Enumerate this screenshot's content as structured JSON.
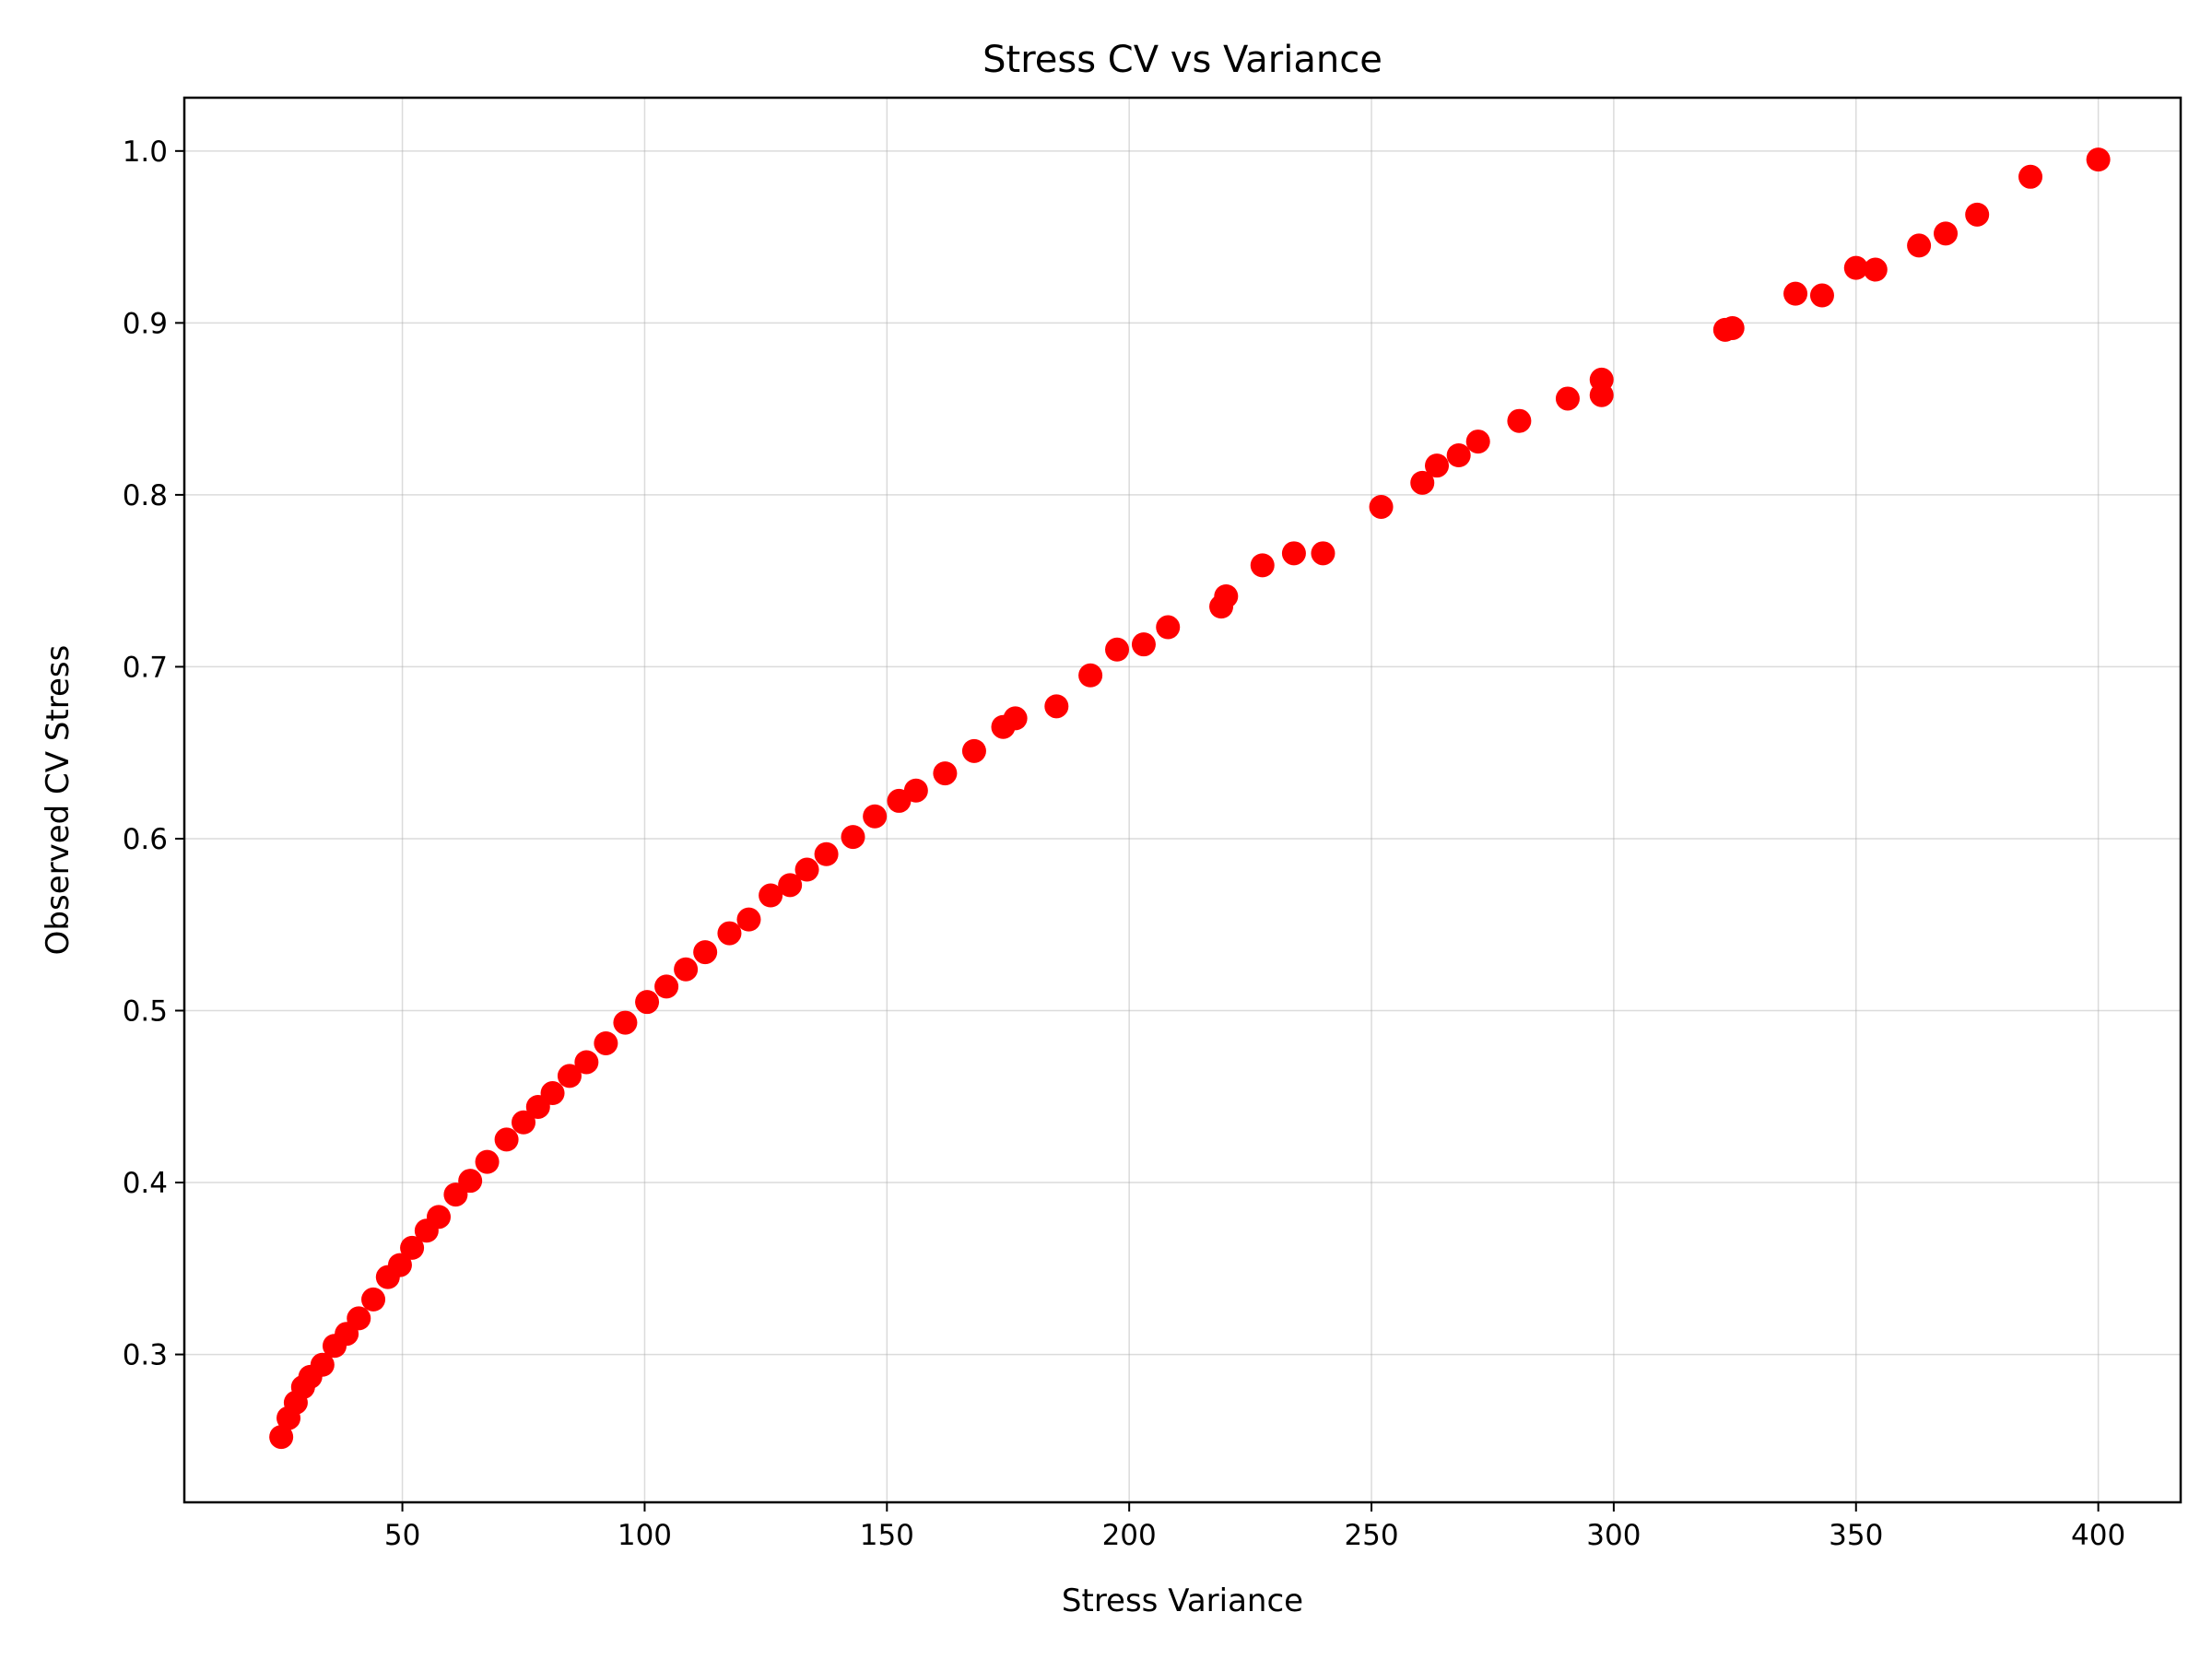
{
  "chart_data": {
    "type": "scatter",
    "title": "Stress CV vs Variance",
    "xlabel": "Stress Variance",
    "ylabel": "Observed CV Stress",
    "xlim": [
      5,
      417
    ],
    "ylim": [
      0.214,
      1.031
    ],
    "xticks": [
      50,
      100,
      150,
      200,
      250,
      300,
      350,
      400
    ],
    "yticks": [
      0.3,
      0.4,
      0.5,
      0.6,
      0.7,
      0.8,
      0.9,
      1.0
    ],
    "xtick_labels": [
      "50",
      "100",
      "150",
      "200",
      "250",
      "300",
      "350",
      "400"
    ],
    "ytick_labels": [
      "0.3",
      "0.4",
      "0.5",
      "0.6",
      "0.7",
      "0.8",
      "0.9",
      "1.0"
    ],
    "grid": true,
    "marker_color": "#ff0000",
    "series": [
      {
        "x": [
          25,
          26.5,
          28,
          29.5,
          31,
          33.5,
          36,
          38.5,
          41,
          44,
          47,
          49.5,
          52,
          55,
          57.5,
          61,
          64,
          67.5,
          71.5,
          75,
          78,
          81,
          84.5,
          88,
          92,
          96,
          100.5,
          104.5,
          108.5,
          112.5,
          117.5,
          121.5,
          126,
          130,
          133.5,
          137.5,
          143,
          147.5,
          152.5,
          156,
          162,
          168,
          174,
          176.5,
          185,
          192,
          197.5,
          203,
          208,
          219,
          220,
          227.5,
          234,
          240,
          252,
          260.5,
          263.5,
          268,
          272,
          280.5,
          290.5,
          297.5,
          297.5,
          323,
          324.5,
          337.5,
          343,
          350,
          354,
          363,
          368.5,
          375,
          386,
          400
        ],
        "y": [
          0.252,
          0.263,
          0.272,
          0.281,
          0.287,
          0.294,
          0.305,
          0.312,
          0.321,
          0.332,
          0.345,
          0.352,
          0.362,
          0.372,
          0.38,
          0.393,
          0.401,
          0.412,
          0.425,
          0.435,
          0.444,
          0.452,
          0.462,
          0.47,
          0.481,
          0.493,
          0.505,
          0.514,
          0.524,
          0.534,
          0.545,
          0.553,
          0.567,
          0.573,
          0.582,
          0.591,
          0.601,
          0.613,
          0.622,
          0.628,
          0.638,
          0.651,
          0.665,
          0.67,
          0.677,
          0.695,
          0.71,
          0.713,
          0.723,
          0.735,
          0.741,
          0.759,
          0.766,
          0.766,
          0.793,
          0.807,
          0.817,
          0.823,
          0.831,
          0.843,
          0.856,
          0.867,
          0.858,
          0.896,
          0.897,
          0.917,
          0.916,
          0.932,
          0.931,
          0.945,
          0.952,
          0.963,
          0.985,
          0.995
        ]
      }
    ]
  }
}
